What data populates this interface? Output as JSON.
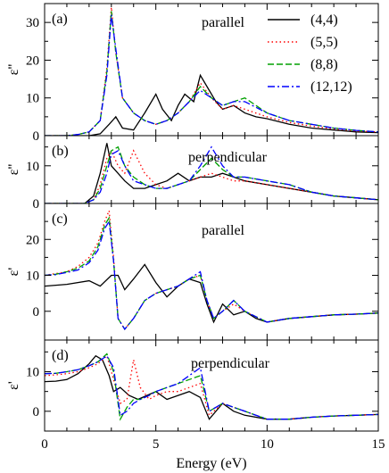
{
  "chart_data": {
    "type": "line",
    "xlabel": "Energy (eV)",
    "xlim": [
      0,
      15
    ],
    "xticks": [
      "0",
      "5",
      "10",
      "15"
    ],
    "legend": {
      "placement": "top-right",
      "entries": [
        "(4,4)",
        "(5,5)",
        "(8,8)",
        "(12,12)"
      ]
    },
    "series_styles": [
      {
        "name": "(4,4)",
        "color": "#000000",
        "dash": "solid"
      },
      {
        "name": "(5,5)",
        "color": "#ff0000",
        "dash": "dotted"
      },
      {
        "name": "(8,8)",
        "color": "#00a000",
        "dash": "dashed"
      },
      {
        "name": "(12,12)",
        "color": "#0000ff",
        "dash": "dash-dot"
      }
    ],
    "panels": [
      {
        "label": "(a)",
        "annotation": "parallel",
        "ylabel": "ε''",
        "ylim": [
          0,
          35
        ],
        "yticks": [
          "0",
          "10",
          "20",
          "30"
        ],
        "series": [
          {
            "name": "(4,4)",
            "x": [
              0,
              1,
              2,
              2.5,
              2.9,
              3.2,
              3.5,
              4.0,
              4.5,
              5.0,
              5.3,
              5.7,
              6.0,
              6.3,
              6.7,
              7.0,
              7.3,
              7.7,
              8.0,
              8.5,
              9.0,
              9.5,
              10,
              11,
              12,
              13,
              14,
              15
            ],
            "y": [
              0,
              0,
              0,
              0.5,
              3,
              5,
              2,
              1.5,
              6,
              11,
              7,
              4,
              8,
              11,
              9,
              16,
              13,
              9,
              7,
              8,
              6,
              5,
              4.5,
              3,
              2,
              1.5,
              1,
              0.8
            ]
          },
          {
            "name": "(5,5)",
            "x": [
              0,
              1,
              1.5,
              2,
              2.5,
              2.8,
              3.0,
              3.2,
              3.5,
              4.0,
              4.5,
              5.0,
              5.5,
              6.0,
              6.5,
              7.0,
              7.5,
              8.0,
              8.5,
              9.0,
              10,
              11,
              12,
              13,
              14,
              15
            ],
            "y": [
              0,
              0,
              0.3,
              1,
              4,
              18,
              34,
              22,
              10,
              6,
              4,
              3,
              4,
              6,
              9,
              14,
              10,
              7,
              8,
              7,
              5,
              3.5,
              2.5,
              1.8,
              1.2,
              1
            ]
          },
          {
            "name": "(8,8)",
            "x": [
              0,
              1,
              1.5,
              2,
              2.5,
              2.8,
              3.0,
              3.2,
              3.5,
              4.0,
              4.5,
              5.0,
              5.5,
              6.0,
              6.5,
              7.0,
              7.5,
              8.0,
              8.5,
              9.0,
              10,
              11,
              12,
              13,
              14,
              15
            ],
            "y": [
              0,
              0,
              0.3,
              1,
              4,
              17,
              33,
              22,
              10,
              6,
              4,
              3,
              4,
              6,
              9,
              13,
              10,
              8,
              9,
              10,
              6,
              4,
              3,
              2,
              1.4,
              1
            ]
          },
          {
            "name": "(12,12)",
            "x": [
              0,
              1,
              1.5,
              2,
              2.5,
              2.8,
              3.0,
              3.2,
              3.5,
              4.0,
              4.5,
              5.0,
              5.5,
              6.0,
              6.5,
              7.0,
              7.5,
              8.0,
              8.5,
              9.0,
              10,
              11,
              12,
              13,
              14,
              15
            ],
            "y": [
              0,
              0,
              0.3,
              1,
              4,
              16,
              32,
              23,
              10,
              6,
              4,
              3,
              4,
              6,
              9,
              12,
              10,
              8,
              9,
              9,
              6,
              4,
              3,
              2,
              1.4,
              1
            ]
          }
        ]
      },
      {
        "label": "(b)",
        "annotation": "perpendicular",
        "ylabel": "ε''",
        "ylim": [
          0,
          18
        ],
        "yticks": [
          "0",
          "10"
        ],
        "series": [
          {
            "name": "(4,4)",
            "x": [
              0,
              1,
              1.8,
              2.2,
              2.5,
              2.8,
              3.0,
              3.3,
              3.6,
              4.0,
              4.5,
              5.0,
              5.5,
              6.0,
              6.5,
              7.0,
              7.5,
              8.0,
              8.5,
              9.0,
              10,
              11,
              12,
              13,
              14,
              15
            ],
            "y": [
              0,
              0,
              0,
              2,
              8,
              16,
              10,
              8,
              6,
              4,
              4,
              5,
              6,
              8,
              6,
              7,
              7,
              8,
              7,
              6,
              5,
              4,
              3,
              2,
              1.5,
              1
            ]
          },
          {
            "name": "(5,5)",
            "x": [
              0,
              1,
              1.8,
              2.2,
              2.5,
              2.8,
              3.0,
              3.3,
              3.6,
              4.0,
              4.5,
              5.0,
              5.5,
              6.0,
              6.5,
              7.0,
              7.5,
              8.0,
              8.5,
              9.0,
              10,
              11,
              12,
              13,
              14,
              15
            ],
            "y": [
              0,
              0,
              0,
              1,
              5,
              12,
              14,
              10,
              8,
              14,
              8,
              5,
              4,
              5,
              6,
              7,
              8,
              7,
              6,
              6,
              5,
              4,
              3,
              2,
              1.5,
              1
            ]
          },
          {
            "name": "(8,8)",
            "x": [
              0,
              1,
              1.8,
              2.2,
              2.5,
              2.8,
              3.0,
              3.3,
              3.6,
              4.0,
              4.5,
              5.0,
              5.5,
              6.0,
              6.5,
              7.0,
              7.5,
              8.0,
              8.5,
              9.0,
              10,
              11,
              12,
              13,
              14,
              15
            ],
            "y": [
              0,
              0,
              0,
              1,
              4,
              10,
              14,
              15,
              10,
              7,
              5,
              4,
              4,
              5,
              6,
              9,
              12,
              9,
              7,
              7,
              6,
              5,
              3,
              2,
              1.5,
              1
            ]
          },
          {
            "name": "(12,12)",
            "x": [
              0,
              1,
              1.8,
              2.2,
              2.5,
              2.8,
              3.0,
              3.3,
              3.6,
              4.0,
              4.5,
              5.0,
              5.5,
              6.0,
              6.5,
              7.0,
              7.5,
              8.0,
              8.5,
              9.0,
              10,
              11,
              12,
              13,
              14,
              15
            ],
            "y": [
              0,
              0,
              0,
              1,
              3,
              8,
              13,
              14,
              10,
              6,
              5,
              4,
              4,
              5,
              6,
              10,
              15,
              10,
              7,
              7,
              6,
              5,
              3,
              2,
              1.5,
              1
            ]
          }
        ]
      },
      {
        "label": "(c)",
        "annotation": "parallel",
        "ylabel": "ε'",
        "ylim": [
          -8,
          30
        ],
        "yticks": [
          "0",
          "10",
          "20"
        ],
        "series": [
          {
            "name": "(4,4)",
            "x": [
              0,
              1,
              2,
              2.5,
              3.0,
              3.3,
              3.6,
              4.0,
              4.5,
              5.0,
              5.5,
              6.0,
              6.5,
              7.0,
              7.3,
              7.6,
              8.0,
              8.5,
              9.0,
              9.5,
              10,
              11,
              12,
              13,
              14,
              15
            ],
            "y": [
              7,
              7.5,
              8.5,
              7,
              10,
              10,
              6,
              9,
              13,
              8,
              4,
              7,
              9,
              8,
              2,
              -3,
              2,
              -1,
              0,
              -2,
              -3,
              -2,
              -1.5,
              -1,
              -0.8,
              -0.5
            ]
          },
          {
            "name": "(5,5)",
            "x": [
              0,
              0.5,
              1,
              1.5,
              2.0,
              2.4,
              2.7,
              2.9,
              3.1,
              3.3,
              3.6,
              4.0,
              4.5,
              5.0,
              5.5,
              6.0,
              6.5,
              7.0,
              7.3,
              7.6,
              8.0,
              8.5,
              9.0,
              10,
              11,
              12,
              13,
              14,
              15
            ],
            "y": [
              10,
              10.5,
              11,
              12.5,
              15,
              19,
              25,
              28,
              15,
              -2,
              -5,
              -2,
              3,
              5,
              6,
              7,
              9,
              10,
              3,
              -2,
              0,
              2,
              0,
              -3,
              -2,
              -1.5,
              -1,
              -0.8,
              -0.5
            ]
          },
          {
            "name": "(8,8)",
            "x": [
              0,
              0.5,
              1,
              1.5,
              2.0,
              2.4,
              2.7,
              2.9,
              3.1,
              3.3,
              3.6,
              4.0,
              4.5,
              5.0,
              5.5,
              6.0,
              6.5,
              7.0,
              7.3,
              7.6,
              8.0,
              8.5,
              9.0,
              10,
              11,
              12,
              13,
              14,
              15
            ],
            "y": [
              10,
              10.3,
              11,
              12,
              14,
              18,
              24,
              26,
              14,
              -2,
              -5,
              -2,
              3,
              5,
              6,
              7,
              9,
              10,
              3,
              -2,
              0,
              3,
              0,
              -3,
              -2,
              -1.5,
              -1,
              -0.8,
              -0.5
            ]
          },
          {
            "name": "(12,12)",
            "x": [
              0,
              0.5,
              1,
              1.5,
              2.0,
              2.4,
              2.7,
              2.9,
              3.1,
              3.3,
              3.6,
              4.0,
              4.5,
              5.0,
              5.5,
              6.0,
              6.5,
              7.0,
              7.3,
              7.6,
              8.0,
              8.5,
              9.0,
              10,
              11,
              12,
              13,
              14,
              15
            ],
            "y": [
              10,
              10.2,
              10.8,
              11.5,
              13.5,
              17,
              23,
              25,
              14,
              -2,
              -5,
              -2,
              3,
              5,
              6,
              7,
              9,
              11,
              3,
              -2,
              0,
              3,
              0,
              -3,
              -2,
              -1.5,
              -1,
              -0.8,
              -0.5
            ]
          }
        ]
      },
      {
        "label": "(d)",
        "annotation": "perpendicular",
        "ylabel": "ε'",
        "ylim": [
          -5,
          18
        ],
        "yticks": [
          "0",
          "10"
        ],
        "series": [
          {
            "name": "(4,4)",
            "x": [
              0,
              0.5,
              1,
              1.5,
              2.0,
              2.3,
              2.6,
              2.9,
              3.1,
              3.4,
              3.8,
              4.2,
              4.6,
              5.0,
              5.5,
              6.0,
              6.5,
              7.0,
              7.4,
              8.0,
              8.5,
              9.0,
              10,
              11,
              12,
              13,
              14,
              15
            ],
            "y": [
              7.5,
              7.6,
              8,
              9.5,
              12,
              14,
              13,
              9,
              5,
              6,
              4,
              3,
              4,
              5,
              3,
              4,
              5,
              3.5,
              -2,
              2,
              0,
              -1,
              -2,
              -2,
              -1.5,
              -1.2,
              -1,
              -0.8
            ]
          },
          {
            "name": "(5,5)",
            "x": [
              0,
              0.5,
              1,
              1.5,
              2.0,
              2.4,
              2.8,
              3.1,
              3.4,
              3.7,
              4.0,
              4.3,
              4.7,
              5.0,
              5.5,
              6.0,
              6.5,
              7.0,
              7.4,
              8.0,
              8.5,
              9.0,
              10,
              11,
              12,
              13,
              14,
              15
            ],
            "y": [
              9,
              9.2,
              9.5,
              10,
              11,
              12,
              14,
              8,
              2,
              3,
              13,
              6,
              3,
              4,
              5,
              5,
              6,
              7,
              -1,
              2,
              1,
              0,
              -2,
              -2,
              -1.5,
              -1.2,
              -1,
              -0.8
            ]
          },
          {
            "name": "(8,8)",
            "x": [
              0,
              0.5,
              1,
              1.5,
              2.0,
              2.4,
              2.8,
              3.1,
              3.4,
              3.7,
              4.0,
              4.3,
              4.7,
              5.0,
              5.5,
              6.0,
              6.5,
              7.0,
              7.4,
              8.0,
              8.5,
              9.0,
              10,
              11,
              12,
              13,
              14,
              15
            ],
            "y": [
              9.5,
              9.6,
              10,
              10.5,
              11.5,
              12.5,
              14.5,
              10,
              -2,
              1,
              3,
              3,
              4,
              5,
              6,
              7,
              8,
              9,
              0,
              2,
              1,
              0,
              -2,
              -2,
              -1.5,
              -1.2,
              -1,
              -0.8
            ]
          },
          {
            "name": "(12,12)",
            "x": [
              0,
              0.5,
              1,
              1.5,
              2.0,
              2.4,
              2.8,
              3.1,
              3.4,
              3.7,
              4.0,
              4.3,
              4.7,
              5.0,
              5.5,
              6.0,
              6.5,
              7.0,
              7.4,
              8.0,
              8.5,
              9.0,
              10,
              11,
              12,
              13,
              14,
              15
            ],
            "y": [
              9.5,
              9.6,
              10,
              10.5,
              11.5,
              12.5,
              14,
              11,
              -1,
              0,
              2,
              3,
              4,
              5,
              6,
              7,
              9,
              11,
              0,
              2,
              1,
              0,
              -2,
              -2,
              -1.5,
              -1.2,
              -1,
              -0.8
            ]
          }
        ]
      }
    ]
  }
}
